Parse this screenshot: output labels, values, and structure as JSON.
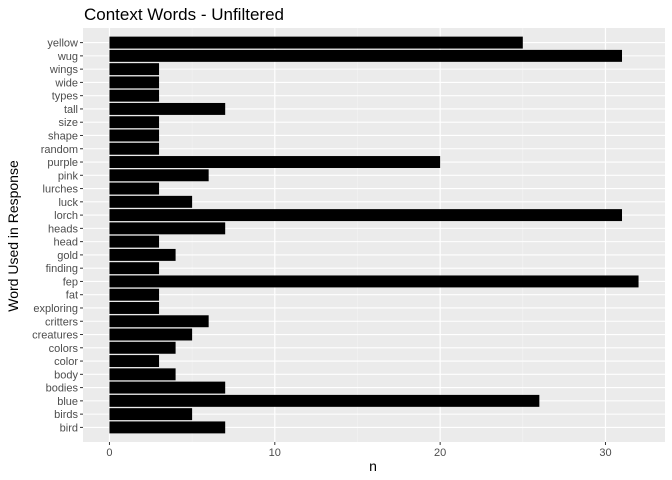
{
  "chart_data": {
    "type": "bar",
    "orientation": "horizontal",
    "title": "Context Words - Unfiltered",
    "xlabel": "n",
    "ylabel": "Word Used in Response",
    "xlim": [
      -1.6,
      33.6
    ],
    "x_ticks": [
      0,
      10,
      20,
      30
    ],
    "x_tick_labels": [
      "0",
      "10",
      "20",
      "30"
    ],
    "grid": true,
    "legend": "none",
    "categories": [
      "bird",
      "birds",
      "blue",
      "bodies",
      "body",
      "color",
      "colors",
      "creatures",
      "critters",
      "exploring",
      "fat",
      "fep",
      "finding",
      "gold",
      "head",
      "heads",
      "lorch",
      "luck",
      "lurches",
      "pink",
      "purple",
      "random",
      "shape",
      "size",
      "tall",
      "types",
      "wide",
      "wings",
      "wug",
      "yellow"
    ],
    "values": [
      7,
      5,
      26,
      7,
      4,
      3,
      4,
      5,
      6,
      3,
      3,
      32,
      3,
      4,
      3,
      7,
      31,
      5,
      3,
      6,
      20,
      3,
      3,
      3,
      7,
      3,
      3,
      3,
      31,
      25
    ],
    "colors": {
      "bar": "#000000",
      "panel": "#ebebeb",
      "grid_major": "#ffffff",
      "grid_minor": "#f4f4f4",
      "tick_text": "#4d4d4d"
    }
  }
}
